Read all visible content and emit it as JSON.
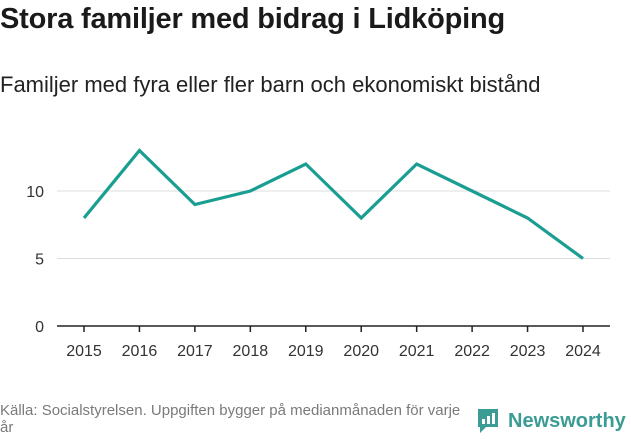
{
  "title": "Stora familjer med bidrag i Lidköping",
  "subtitle": "Familjer med fyra eller fler barn och ekonomiskt bistånd",
  "source": "Källa: Socialstyrelsen. Uppgiften bygger på medianmånaden för varje år",
  "brand": "Newsworthy",
  "colors": {
    "line": "#1a9e92",
    "grid": "#dddddd",
    "brand": "#3a9c94"
  },
  "chart_data": {
    "type": "line",
    "title": "Stora familjer med bidrag i Lidköping",
    "xlabel": "",
    "ylabel": "",
    "categories": [
      "2015",
      "2016",
      "2017",
      "2018",
      "2019",
      "2020",
      "2021",
      "2022",
      "2023",
      "2024"
    ],
    "series": [
      {
        "name": "Familjer",
        "values": [
          8,
          13,
          9,
          10,
          12,
          8,
          12,
          10,
          8,
          5
        ]
      }
    ],
    "ylim": [
      0,
      14
    ],
    "yticks": [
      0,
      5,
      10
    ],
    "grid": true
  }
}
